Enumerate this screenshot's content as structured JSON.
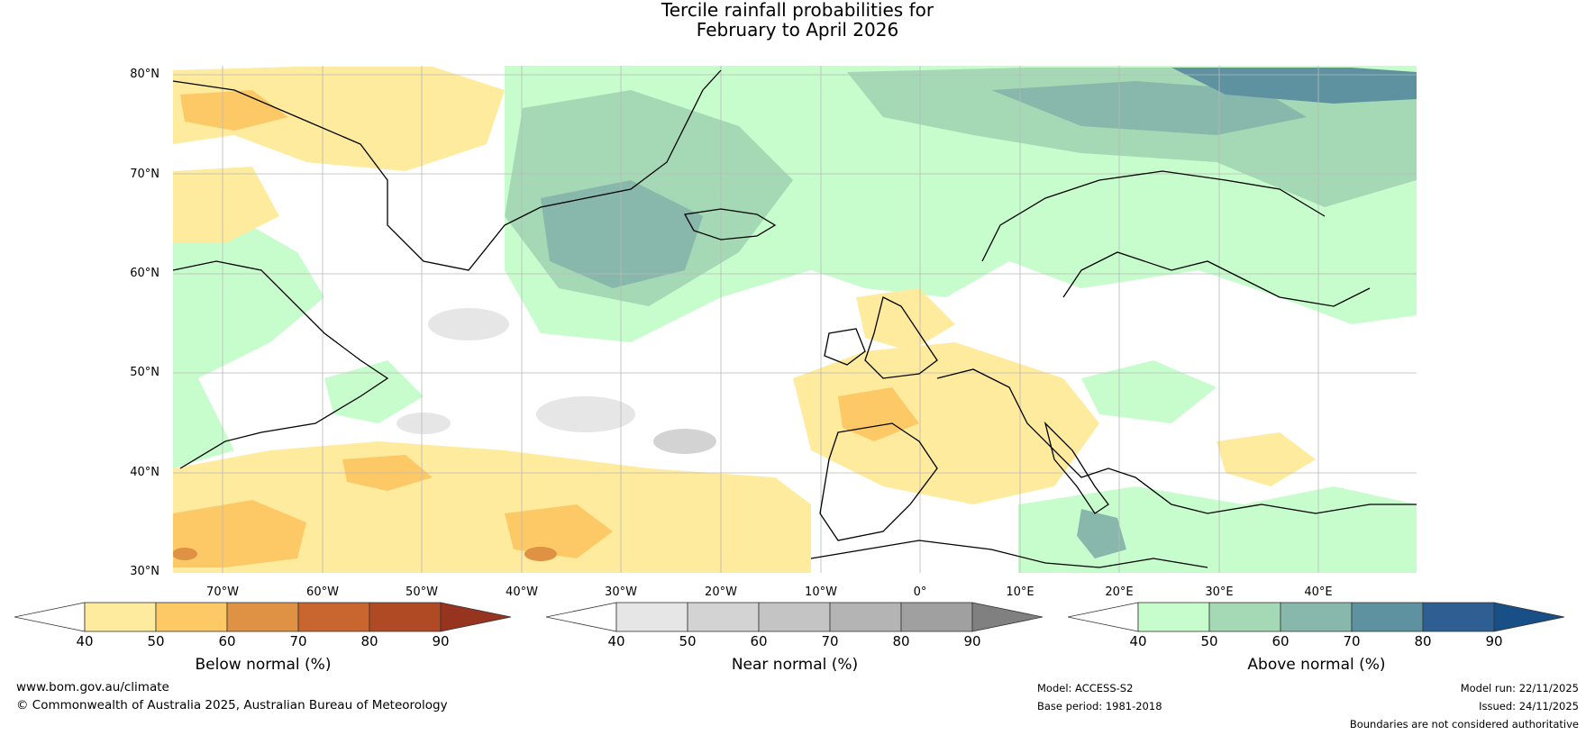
{
  "title": {
    "line1": "Tercile rainfall probabilities for",
    "line2": "February to April 2026"
  },
  "map": {
    "lat_labels": [
      "80°N",
      "70°N",
      "60°N",
      "50°N",
      "40°N",
      "30°N"
    ],
    "lon_labels": [
      "70°W",
      "60°W",
      "50°W",
      "40°W",
      "30°W",
      "20°W",
      "10°W",
      "0°",
      "10°E",
      "20°E",
      "30°E",
      "40°E"
    ]
  },
  "colorbars": [
    {
      "label": "Below normal (%)",
      "ticks": [
        "40",
        "50",
        "60",
        "70",
        "80",
        "90"
      ],
      "colors": [
        "#ffffff",
        "#feeb9e",
        "#fdc966",
        "#df9144",
        "#c9652f",
        "#b04a25",
        "#963420"
      ]
    },
    {
      "label": "Near normal (%)",
      "ticks": [
        "40",
        "50",
        "60",
        "70",
        "80",
        "90"
      ],
      "colors": [
        "#ffffff",
        "#e6e6e6",
        "#d3d3d3",
        "#c4c4c4",
        "#b4b4b4",
        "#a0a0a0",
        "#808080"
      ]
    },
    {
      "label": "Above normal (%)",
      "ticks": [
        "40",
        "50",
        "60",
        "70",
        "80",
        "90"
      ],
      "colors": [
        "#ffffff",
        "#c7fdcc",
        "#a5d9b5",
        "#88b8ab",
        "#5f92a0",
        "#2f5f92",
        "#174f86"
      ]
    }
  ],
  "footer": {
    "website": "www.bom.gov.au/climate",
    "copyright": "© Commonwealth of Australia 2025, Australian Bureau of Meteorology",
    "model": "Model: ACCESS-S2",
    "base_period": "Base period: 1981-2018",
    "model_run": "Model run: 22/11/2025",
    "issued": "Issued: 24/11/2025",
    "disclaimer": "Boundaries are not considered authoritative"
  }
}
